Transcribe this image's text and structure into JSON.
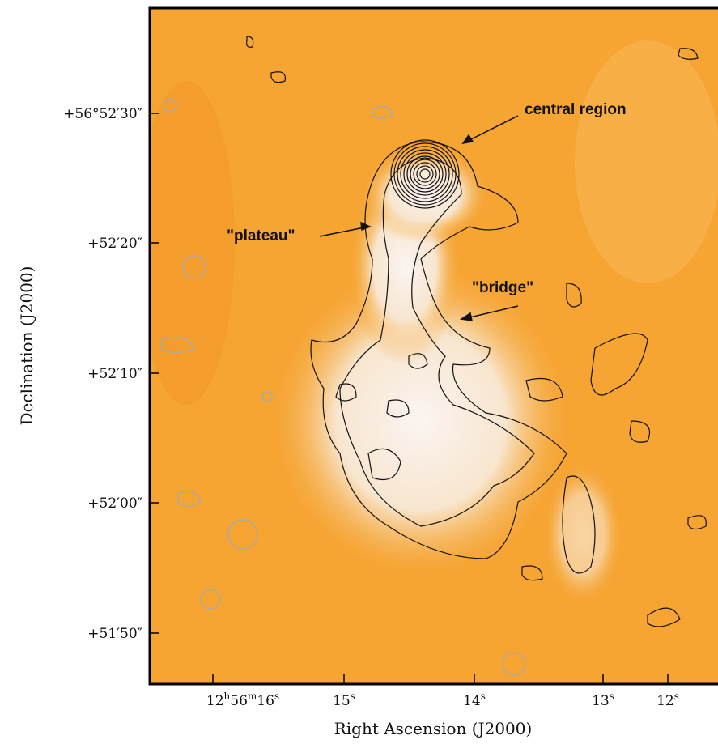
{
  "axes": {
    "x_label": "Right Ascension (J2000)",
    "y_label": "Declination (J2000)",
    "x_ticks": [
      [
        "12",
        "h",
        "56",
        "m",
        "16",
        "s"
      ],
      [
        "15",
        "s"
      ],
      [
        "14",
        "s"
      ],
      [
        "13",
        "s"
      ],
      [
        "12",
        "s"
      ]
    ],
    "y_ticks": [
      "+56°52′30″",
      "+52′20″",
      "+52′10″",
      "+52′00″",
      "+51′50″"
    ]
  },
  "annotations": [
    "central region",
    "\"plateau\"",
    "\"bridge\""
  ]
}
